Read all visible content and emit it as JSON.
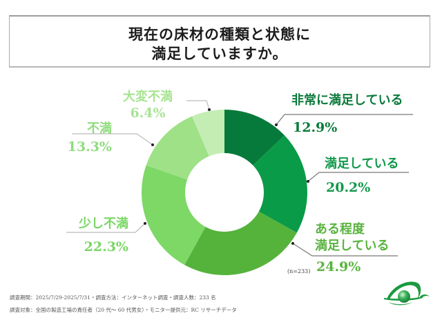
{
  "title": {
    "line1": "現在の床材の種類と状態に",
    "line2": "満足していますか。"
  },
  "chart_data": {
    "type": "pie",
    "variant": "donut",
    "title": "現在の床材の種類と状態に満足していますか。",
    "start": "12 o'clock, clockwise",
    "sample_size_label": "(n=233)",
    "categories": [
      "非常に満足している",
      "満足している",
      "ある程度満足している",
      "少し不満",
      "不満",
      "大変不満"
    ],
    "values": [
      12.9,
      20.2,
      24.9,
      22.3,
      13.3,
      6.4
    ],
    "unit": "%",
    "slices": [
      {
        "label_lines": [
          "非常に満足している"
        ],
        "value_label": "12.9%",
        "value": 12.9,
        "color": "#067a3a",
        "text_color": "#0b7a3b"
      },
      {
        "label_lines": [
          "満足している"
        ],
        "value_label": "20.2%",
        "value": 20.2,
        "color": "#0a9b48",
        "text_color": "#12994a"
      },
      {
        "label_lines": [
          "ある程度",
          "満足している"
        ],
        "value_label": "24.9%",
        "value": 24.9,
        "color": "#55b33c",
        "text_color": "#59b33f"
      },
      {
        "label_lines": [
          "少し不満"
        ],
        "value_label": "22.3%",
        "value": 22.3,
        "color": "#7dd866",
        "text_color": "#79d665"
      },
      {
        "label_lines": [
          "不満"
        ],
        "value_label": "13.3%",
        "value": 13.3,
        "color": "#9ee187",
        "text_color": "#8fdc7c"
      },
      {
        "label_lines": [
          "大変不満"
        ],
        "value_label": "6.4%",
        "value": 6.4,
        "color": "#c4edb4",
        "text_color": "#a7e492"
      }
    ]
  },
  "footer": {
    "line1": "調査期間：2025/7/29-2025/7/31・調査方法：インターネット調査・調査人数：233 名",
    "line2": "調査対象：全国の製造工場の責任者（20 代～ 60 代男女）・モニター提供元：RC リサーチデータ"
  },
  "logo": {
    "icon": "rc-research-logo-icon",
    "color": "#1a9a3f"
  }
}
